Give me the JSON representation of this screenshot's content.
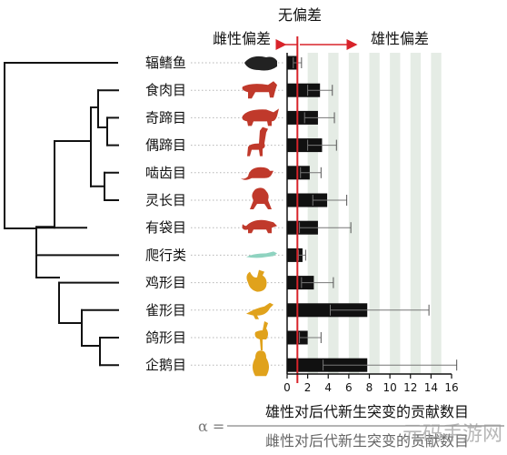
{
  "chart_data": {
    "type": "bar",
    "orientation": "horizontal",
    "title": "",
    "header": {
      "center": "无偏差",
      "left": "雌性偏差",
      "right": "雄性偏差"
    },
    "categories": [
      "辐鳍鱼",
      "食肉目",
      "奇蹄目",
      "偶蹄目",
      "啮齿目",
      "灵长目",
      "有袋目",
      "爬行类",
      "鸡形目",
      "雀形目",
      "鸽形目",
      "企鹅目"
    ],
    "values": [
      1.0,
      3.2,
      3.0,
      3.4,
      2.2,
      3.9,
      3.0,
      1.5,
      2.6,
      7.8,
      2.0,
      7.8
    ],
    "error_low": [
      0.6,
      2.0,
      1.7,
      2.0,
      1.3,
      2.5,
      1.2,
      1.1,
      1.4,
      4.2,
      1.2,
      3.5
    ],
    "error_high": [
      1.4,
      4.4,
      4.6,
      4.8,
      3.3,
      5.8,
      6.2,
      1.8,
      4.5,
      13.8,
      3.3,
      16.5
    ],
    "reference_line": 1,
    "xlim": [
      0,
      16
    ],
    "xticks": [
      0,
      2,
      4,
      6,
      8,
      10,
      12,
      14,
      16
    ],
    "xlabel_numerator": "雄性对后代新生突变的贡献数目",
    "xlabel_denominator": "雌性对后代新生突变的贡献数目",
    "xlabel_prefix": "α =",
    "grid": "alternating vertical bands",
    "colors": {
      "bar": "#111111",
      "reference": "#d8232a",
      "band": "#e5ece5",
      "carnivore_silhouette": "#c0392b",
      "reptile_silhouette": "#8fd3c0",
      "bird_silhouette": "#e0a21c",
      "fish_silhouette": "#222222"
    },
    "icons": [
      "fish-icon",
      "tiger-icon",
      "rhino-icon",
      "giraffe-icon",
      "rat-icon",
      "monkey-icon",
      "opossum-icon",
      "lizard-icon",
      "rooster-icon",
      "sparrow-icon",
      "flamingo-icon",
      "penguin-icon"
    ]
  },
  "watermark": "元码手游网"
}
